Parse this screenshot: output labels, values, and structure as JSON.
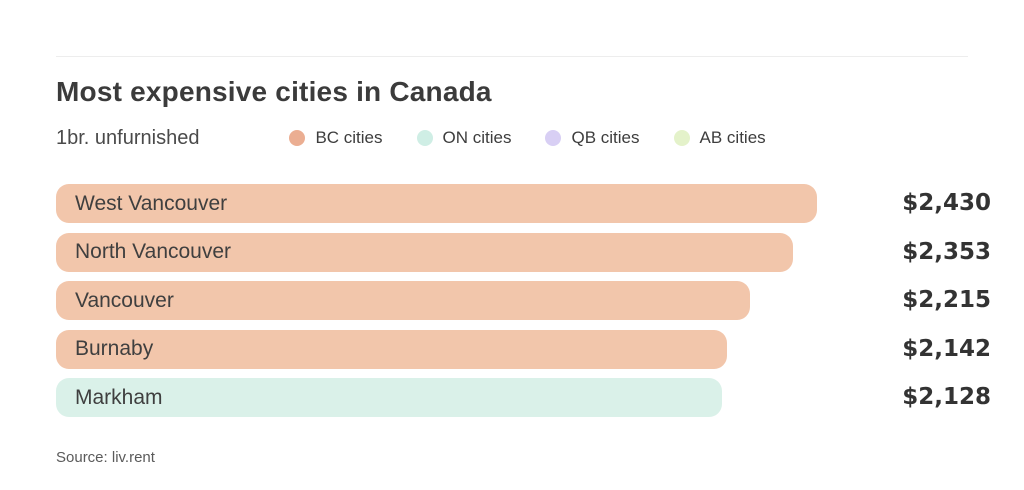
{
  "header": {
    "title": "Most expensive cities in Canada",
    "subtitle": "1br. unfurnished"
  },
  "legend": [
    {
      "label": "BC cities",
      "color": "#ebae92"
    },
    {
      "label": "ON cities",
      "color": "#cfeee5"
    },
    {
      "label": "QB cities",
      "color": "#d8cff4"
    },
    {
      "label": "AB cities",
      "color": "#e4f2ca"
    }
  ],
  "chart_data": {
    "type": "bar",
    "orientation": "horizontal",
    "title": "Most expensive cities in Canada",
    "subtitle": "1br. unfurnished",
    "categories": [
      "West Vancouver",
      "North Vancouver",
      "Vancouver",
      "Burnaby",
      "Markham"
    ],
    "values": [
      2430,
      2353,
      2215,
      2142,
      2128
    ],
    "value_labels": [
      "$2,430",
      "$2,353",
      "$2,215",
      "$2,142",
      "$2,128"
    ],
    "groups": [
      "BC cities",
      "BC cities",
      "BC cities",
      "BC cities",
      "ON cities"
    ],
    "bar_colors": [
      "#f2c6ab",
      "#f2c6ab",
      "#f2c6ab",
      "#f2c6ab",
      "#daf1e9"
    ],
    "xlim": [
      0,
      2430
    ],
    "grid": false,
    "legend_position": "top",
    "value_label_position": "right-of-bar"
  },
  "footer": {
    "source": "Source: liv.rent"
  },
  "colors": {
    "background": "#ffffff",
    "title_text": "#3b3b3b",
    "body_text": "#3f3f3f",
    "value_text": "#333333",
    "source_text": "#5a5a5a",
    "divider": "#ededed",
    "bc_bar": "#f2c6ab",
    "on_bar": "#daf1e9",
    "qb_swatch": "#d8cff4",
    "ab_swatch": "#e4f2ca"
  }
}
